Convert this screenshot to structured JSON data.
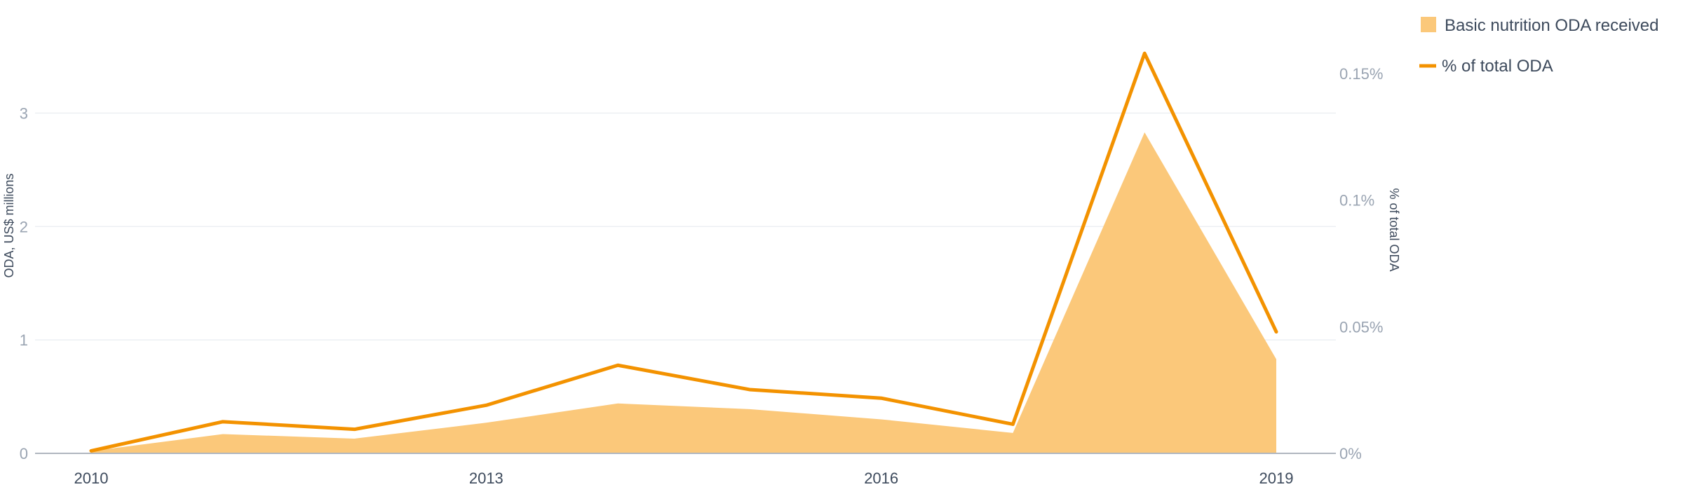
{
  "chart_data": {
    "type": "area",
    "categories": [
      "2010",
      "2011",
      "2012",
      "2013",
      "2014",
      "2015",
      "2016",
      "2017",
      "2018",
      "2019"
    ],
    "x_tick_labels": [
      "2010",
      "2013",
      "2016",
      "2019"
    ],
    "series": [
      {
        "name": "Basic nutrition ODA received",
        "type": "area",
        "axis": "left",
        "color": "#fbc87a",
        "values": [
          0.02,
          0.17,
          0.13,
          0.27,
          0.44,
          0.39,
          0.3,
          0.18,
          2.83,
          0.83
        ]
      },
      {
        "name": "% of total ODA",
        "type": "line",
        "axis": "right",
        "color": "#f39200",
        "values": [
          0.001,
          0.0125,
          0.0095,
          0.019,
          0.0348,
          0.0252,
          0.0218,
          0.0115,
          0.158,
          0.048
        ]
      }
    ],
    "ylabel": "ODA, US$ millions",
    "ylim": [
      0,
      3.75
    ],
    "y_ticks": [
      0,
      1,
      2,
      3
    ],
    "y_tick_labels": [
      "0",
      "1",
      "2",
      "3"
    ],
    "y2label": "% of total ODA",
    "y2lim": [
      0,
      0.168
    ],
    "y2_ticks": [
      0,
      0.05,
      0.1,
      0.15
    ],
    "y2_tick_labels": [
      "0%",
      "0.05%",
      "0.1%",
      "0.15%"
    ],
    "grid": true,
    "legend_position": "top-right"
  }
}
